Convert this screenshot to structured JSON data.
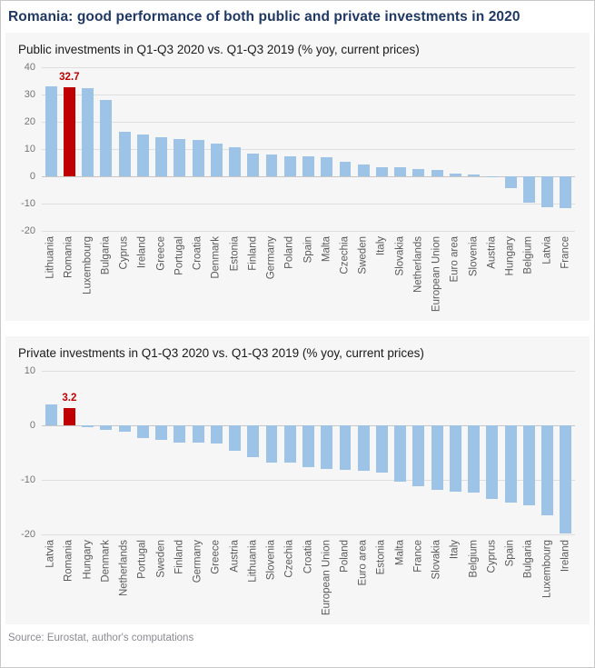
{
  "page": {
    "title": "Romania: good performance of both public and private investments in 2020",
    "source": "Source: Eurostat, author's computations",
    "colors": {
      "title": "#1f3864",
      "bar": "#9dc3e6",
      "highlight": "#c00000",
      "panel_background": "#f6f6f6"
    }
  },
  "chart_data": [
    {
      "type": "bar",
      "title": "Public investments in Q1-Q3 2020 vs. Q1-Q3 2019 (% yoy, current prices)",
      "categories": [
        "Lithuania",
        "Romania",
        "Luxembourg",
        "Bulgaria",
        "Cyprus",
        "Ireland",
        "Greece",
        "Portugal",
        "Croatia",
        "Denmark",
        "Estonia",
        "Finland",
        "Germany",
        "Poland",
        "Spain",
        "Malta",
        "Czechia",
        "Sweden",
        "Italy",
        "Slovakia",
        "Netherlands",
        "European Union",
        "Euro area",
        "Slovenia",
        "Austria",
        "Hungary",
        "Belgium",
        "Latvia",
        "France"
      ],
      "values": [
        33.1,
        32.7,
        32.2,
        28.0,
        16.2,
        15.5,
        14.5,
        13.8,
        13.4,
        11.9,
        10.6,
        8.4,
        7.9,
        7.5,
        7.2,
        6.9,
        5.3,
        4.4,
        3.4,
        3.3,
        2.6,
        2.2,
        1.1,
        0.6,
        0.1,
        -4.3,
        -9.6,
        -11.2,
        -11.6
      ],
      "highlight": {
        "category": "Romania",
        "index": 1,
        "label": "32.7"
      },
      "xlabel": "",
      "ylabel": "",
      "ylim": [
        -20,
        40
      ],
      "yticks": [
        40,
        30,
        20,
        10,
        0,
        -10,
        -20
      ],
      "grid": true,
      "legend": false
    },
    {
      "type": "bar",
      "title": "Private investments in Q1-Q3 2020 vs. Q1-Q3 2019 (% yoy, current prices)",
      "categories": [
        "Latvia",
        "Romania",
        "Hungary",
        "Denmark",
        "Netherlands",
        "Portugal",
        "Sweden",
        "Finland",
        "Germany",
        "Greece",
        "Austria",
        "Lithuania",
        "Slovenia",
        "Czechia",
        "Croatia",
        "European Union",
        "Poland",
        "Euro area",
        "Estonia",
        "Malta",
        "France",
        "Slovakia",
        "Italy",
        "Belgium",
        "Cyprus",
        "Spain",
        "Bulgaria",
        "Luxembourg",
        "Ireland"
      ],
      "values": [
        3.9,
        3.2,
        -0.4,
        -0.8,
        -1.1,
        -2.4,
        -2.6,
        -3.1,
        -3.1,
        -3.4,
        -4.6,
        -5.8,
        -6.8,
        -6.9,
        -7.6,
        -8.0,
        -8.2,
        -8.3,
        -8.7,
        -10.3,
        -11.1,
        -11.8,
        -12.2,
        -12.3,
        -13.5,
        -14.1,
        -14.6,
        -16.5,
        -19.9
      ],
      "highlight": {
        "category": "Romania",
        "index": 1,
        "label": "3.2"
      },
      "xlabel": "",
      "ylabel": "",
      "ylim": [
        -20,
        10
      ],
      "yticks": [
        10,
        0,
        -10,
        -20
      ],
      "grid": true,
      "legend": false
    }
  ]
}
